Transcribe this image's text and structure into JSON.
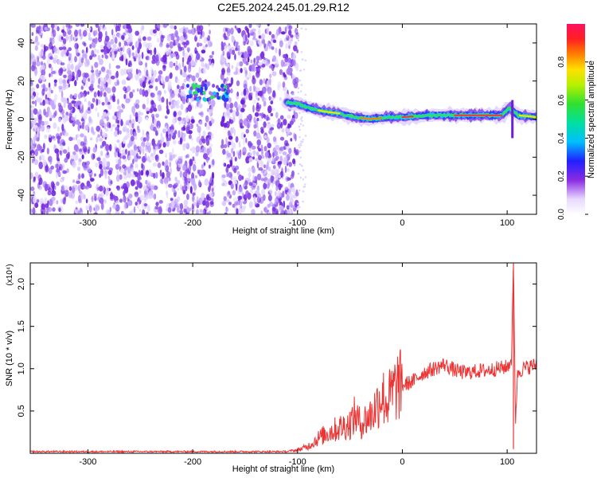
{
  "title": "C2E5.2024.245.01.29.R12",
  "chart_data": [
    {
      "type": "heatmap",
      "panel": "spectrogram",
      "xlabel": "Height of straight line (km)",
      "ylabel": "Frequency (Hz)",
      "xlim": [
        -355,
        128
      ],
      "ylim": [
        -50,
        50
      ],
      "xticks": [
        -300,
        -200,
        -100,
        0,
        100
      ],
      "yticks": [
        -40,
        -20,
        0,
        20,
        40
      ],
      "grid": false,
      "colorbar": {
        "label": "Normalized spectral amplitude",
        "range": [
          0,
          1
        ],
        "ticks": [
          "0.0",
          "0.2",
          "0.4",
          "0.6",
          "0.8"
        ]
      },
      "noise_region_x": [
        -355,
        -100
      ],
      "ridge": {
        "x": [
          -205,
          -190,
          -175,
          -165,
          -100,
          -90,
          -75,
          -60,
          -45,
          -30,
          -15,
          0,
          25,
          50,
          75,
          95,
          102,
          110,
          128
        ],
        "y": [
          13,
          15,
          14,
          13,
          8,
          6,
          4,
          3,
          1,
          0,
          1,
          1,
          2,
          2,
          2,
          2,
          6,
          2,
          1
        ]
      }
    },
    {
      "type": "line",
      "panel": "snr",
      "xlabel": "Height of straight line (km)",
      "ylabel": "SNR (10 * v/v)",
      "y_multiplier": "(x10⁴)",
      "xlim": [
        -355,
        128
      ],
      "ylim": [
        0,
        2.25
      ],
      "xticks": [
        -300,
        -200,
        -100,
        0,
        100
      ],
      "yticks": [
        "0.5",
        "1.0",
        "1.5",
        "2.0"
      ],
      "grid": false,
      "color": "#ee3333",
      "series_envelope": {
        "x": [
          -355,
          -110,
          -100,
          -90,
          -80,
          -70,
          -60,
          -50,
          -45,
          -40,
          -35,
          -30,
          -25,
          -20,
          -15,
          -10,
          -5,
          0,
          10,
          20,
          30,
          40,
          50,
          60,
          70,
          80,
          90,
          100,
          104,
          106,
          108,
          110,
          115,
          128
        ],
        "y": [
          0.02,
          0.02,
          0.04,
          0.08,
          0.18,
          0.25,
          0.3,
          0.35,
          0.45,
          0.35,
          0.4,
          0.45,
          0.55,
          0.7,
          0.6,
          0.7,
          0.8,
          0.8,
          0.85,
          0.95,
          1.0,
          1.05,
          0.98,
          0.95,
          0.97,
          0.98,
          1.0,
          1.02,
          1.1,
          2.2,
          0.4,
          0.95,
          1.0,
          1.05
        ]
      }
    }
  ]
}
